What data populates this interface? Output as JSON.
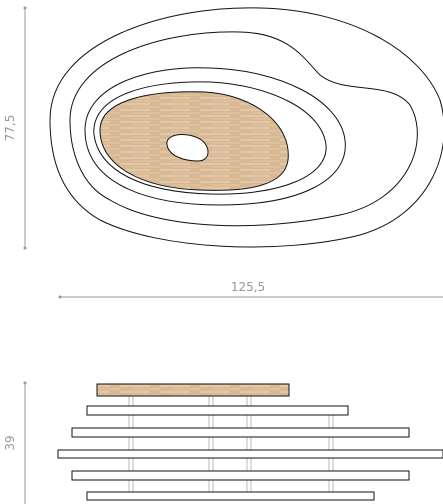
{
  "top_view": {
    "height_label": "77,5",
    "length_label": "125,5"
  },
  "side_view": {
    "height_label": "39"
  }
}
